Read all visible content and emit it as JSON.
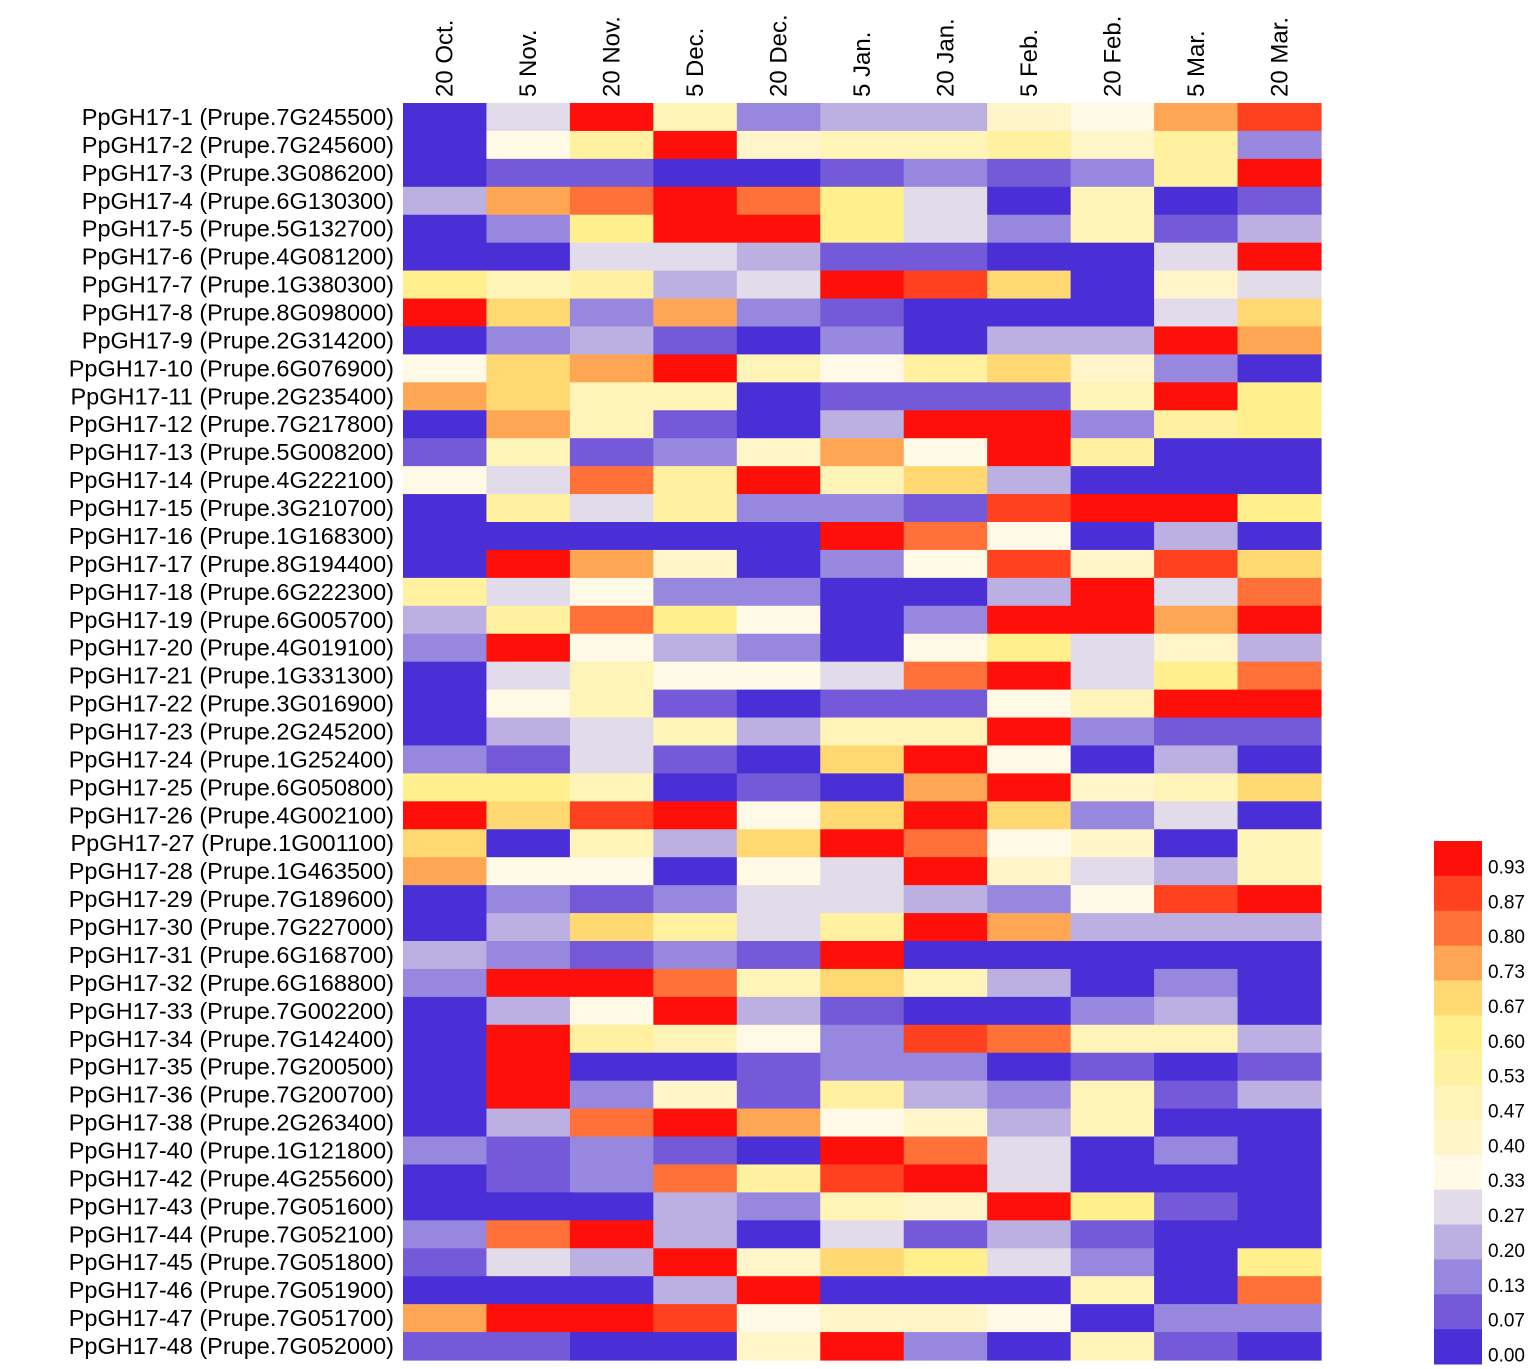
{
  "chart_data": {
    "type": "heatmap",
    "title": "",
    "columns": [
      "20 Oct.",
      "5 Nov.",
      "20 Nov.",
      "5 Dec.",
      "20 Dec.",
      "5 Jan.",
      "20 Jan.",
      "5 Feb.",
      "20 Feb.",
      "5 Mar.",
      "20 Mar."
    ],
    "rows": [
      "PpGH17-1 (Prupe.7G245500)",
      "PpGH17-2 (Prupe.7G245600)",
      "PpGH17-3 (Prupe.3G086200)",
      "PpGH17-4 (Prupe.6G130300)",
      "PpGH17-5 (Prupe.5G132700)",
      "PpGH17-6 (Prupe.4G081200)",
      "PpGH17-7 (Prupe.1G380300)",
      "PpGH17-8 (Prupe.8G098000)",
      "PpGH17-9 (Prupe.2G314200)",
      "PpGH17-10 (Prupe.6G076900)",
      "PpGH17-11 (Prupe.2G235400)",
      "PpGH17-12 (Prupe.7G217800)",
      "PpGH17-13 (Prupe.5G008200)",
      "PpGH17-14 (Prupe.4G222100)",
      "PpGH17-15 (Prupe.3G210700)",
      "PpGH17-16 (Prupe.1G168300)",
      "PpGH17-17 (Prupe.8G194400)",
      "PpGH17-18 (Prupe.6G222300)",
      "PpGH17-19 (Prupe.6G005700)",
      "PpGH17-20 (Prupe.4G019100)",
      "PpGH17-21 (Prupe.1G331300)",
      "PpGH17-22 (Prupe.3G016900)",
      "PpGH17-23 (Prupe.2G245200)",
      "PpGH17-24 (Prupe.1G252400)",
      "PpGH17-25 (Prupe.6G050800)",
      "PpGH17-26 (Prupe.4G002100)",
      "PpGH17-27 (Prupe.1G001100)",
      "PpGH17-28 (Prupe.1G463500)",
      "PpGH17-29 (Prupe.7G189600)",
      "PpGH17-30 (Prupe.7G227000)",
      "PpGH17-31 (Prupe.6G168700)",
      "PpGH17-32 (Prupe.6G168800)",
      "PpGH17-33 (Prupe.7G002200)",
      "PpGH17-34 (Prupe.7G142400)",
      "PpGH17-35 (Prupe.7G200500)",
      "PpGH17-36 (Prupe.7G200700)",
      "PpGH17-38 (Prupe.2G263400)",
      "PpGH17-40 (Prupe.1G121800)",
      "PpGH17-42 (Prupe.4G255600)",
      "PpGH17-43 (Prupe.7G051600)",
      "PpGH17-44 (Prupe.7G052100)",
      "PpGH17-45 (Prupe.7G051800)",
      "PpGH17-46 (Prupe.7G051900)",
      "PpGH17-47 (Prupe.7G051700)",
      "PpGH17-48 (Prupe.7G052000)"
    ],
    "values": [
      [
        0,
        0.27,
        0.93,
        0.47,
        0.13,
        0.2,
        0.2,
        0.4,
        0.33,
        0.73,
        0.87
      ],
      [
        0,
        0.33,
        0.53,
        0.93,
        0.4,
        0.47,
        0.47,
        0.53,
        0.4,
        0.53,
        0.13
      ],
      [
        0,
        0.07,
        0.07,
        0,
        0,
        0.07,
        0.13,
        0.07,
        0.13,
        0.53,
        0.93
      ],
      [
        0.2,
        0.73,
        0.8,
        0.93,
        0.8,
        0.6,
        0.27,
        0,
        0.47,
        0,
        0.07
      ],
      [
        0,
        0.13,
        0.6,
        0.93,
        0.93,
        0.6,
        0.27,
        0.13,
        0.47,
        0.07,
        0.2
      ],
      [
        0,
        0,
        0.27,
        0.27,
        0.2,
        0.07,
        0.07,
        0,
        0,
        0.27,
        0.93
      ],
      [
        0.6,
        0.47,
        0.53,
        0.2,
        0.27,
        0.93,
        0.87,
        0.67,
        0,
        0.4,
        0.27
      ],
      [
        0.93,
        0.67,
        0.13,
        0.73,
        0.13,
        0.07,
        0,
        0,
        0,
        0.27,
        0.67
      ],
      [
        0,
        0.13,
        0.2,
        0.07,
        0,
        0.13,
        0,
        0.2,
        0.2,
        0.93,
        0.73
      ],
      [
        0.33,
        0.67,
        0.73,
        0.93,
        0.47,
        0.33,
        0.53,
        0.67,
        0.4,
        0.13,
        0
      ],
      [
        0.73,
        0.67,
        0.47,
        0.47,
        0,
        0.07,
        0.07,
        0.07,
        0.47,
        0.93,
        0.6
      ],
      [
        0,
        0.73,
        0.47,
        0.07,
        0,
        0.2,
        0.93,
        0.93,
        0.13,
        0.53,
        0.6
      ],
      [
        0.07,
        0.47,
        0.07,
        0.13,
        0.4,
        0.73,
        0.33,
        0.93,
        0.53,
        0,
        0
      ],
      [
        0.33,
        0.27,
        0.8,
        0.53,
        0.93,
        0.47,
        0.67,
        0.2,
        0,
        0,
        0
      ],
      [
        0,
        0.53,
        0.27,
        0.53,
        0.13,
        0.13,
        0.07,
        0.87,
        0.93,
        0.93,
        0.6
      ],
      [
        0,
        0,
        0,
        0,
        0,
        0.93,
        0.8,
        0.33,
        0,
        0.2,
        0
      ],
      [
        0,
        0.93,
        0.73,
        0.4,
        0,
        0.13,
        0.33,
        0.87,
        0.4,
        0.87,
        0.67
      ],
      [
        0.53,
        0.27,
        0.33,
        0.13,
        0.13,
        0,
        0,
        0.2,
        0.93,
        0.27,
        0.8
      ],
      [
        0.2,
        0.53,
        0.8,
        0.6,
        0.33,
        0,
        0.13,
        0.93,
        0.93,
        0.73,
        0.93
      ],
      [
        0.13,
        0.93,
        0.33,
        0.2,
        0.13,
        0,
        0.33,
        0.6,
        0.27,
        0.4,
        0.2
      ],
      [
        0,
        0.27,
        0.47,
        0.33,
        0.33,
        0.27,
        0.8,
        0.93,
        0.27,
        0.6,
        0.8
      ],
      [
        0,
        0.33,
        0.47,
        0.07,
        0,
        0.07,
        0.07,
        0.33,
        0.47,
        0.93,
        0.93
      ],
      [
        0,
        0.2,
        0.27,
        0.47,
        0.2,
        0.47,
        0.47,
        0.93,
        0.13,
        0.07,
        0.07
      ],
      [
        0.13,
        0.07,
        0.27,
        0.07,
        0,
        0.67,
        0.93,
        0.33,
        0,
        0.2,
        0
      ],
      [
        0.6,
        0.6,
        0.47,
        0,
        0.07,
        0,
        0.73,
        0.93,
        0.4,
        0.47,
        0.67
      ],
      [
        0.93,
        0.67,
        0.87,
        0.93,
        0.33,
        0.67,
        0.93,
        0.67,
        0.13,
        0.27,
        0
      ],
      [
        0.67,
        0,
        0.47,
        0.2,
        0.67,
        0.93,
        0.8,
        0.33,
        0.4,
        0,
        0.47
      ],
      [
        0.73,
        0.33,
        0.33,
        0,
        0.33,
        0.27,
        0.93,
        0.4,
        0.27,
        0.2,
        0.47
      ],
      [
        0,
        0.13,
        0.07,
        0.13,
        0.27,
        0.27,
        0.2,
        0.13,
        0.33,
        0.87,
        0.93
      ],
      [
        0,
        0.2,
        0.67,
        0.53,
        0.27,
        0.53,
        0.93,
        0.73,
        0.2,
        0.2,
        0.2
      ],
      [
        0.2,
        0.13,
        0.07,
        0.13,
        0.07,
        0.93,
        0,
        0,
        0,
        0,
        0
      ],
      [
        0.13,
        0.93,
        0.93,
        0.8,
        0.47,
        0.67,
        0.47,
        0.2,
        0,
        0.13,
        0
      ],
      [
        0,
        0.2,
        0.33,
        0.93,
        0.2,
        0.07,
        0,
        0,
        0.13,
        0.2,
        0
      ],
      [
        0,
        0.93,
        0.53,
        0.47,
        0.33,
        0.13,
        0.87,
        0.8,
        0.47,
        0.47,
        0.2
      ],
      [
        0,
        0.93,
        0,
        0,
        0.07,
        0.13,
        0.13,
        0,
        0.07,
        0,
        0.07
      ],
      [
        0,
        0.93,
        0.13,
        0.4,
        0.07,
        0.53,
        0.2,
        0.13,
        0.47,
        0.07,
        0.2
      ],
      [
        0,
        0.2,
        0.8,
        0.93,
        0.73,
        0.33,
        0.4,
        0.2,
        0.47,
        0,
        0
      ],
      [
        0.13,
        0.07,
        0.13,
        0.07,
        0,
        0.93,
        0.8,
        0.27,
        0,
        0.13,
        0
      ],
      [
        0,
        0.07,
        0.13,
        0.8,
        0.53,
        0.87,
        0.93,
        0.27,
        0,
        0,
        0
      ],
      [
        0,
        0,
        0,
        0.2,
        0.13,
        0.47,
        0.4,
        0.93,
        0.6,
        0.07,
        0
      ],
      [
        0.13,
        0.8,
        0.93,
        0.2,
        0,
        0.27,
        0.07,
        0.2,
        0.07,
        0,
        0
      ],
      [
        0.07,
        0.27,
        0.2,
        0.93,
        0.4,
        0.67,
        0.6,
        0.27,
        0.13,
        0,
        0.6
      ],
      [
        0,
        0,
        0,
        0.2,
        0.93,
        0,
        0,
        0,
        0.47,
        0,
        0.8
      ],
      [
        0.73,
        0.93,
        0.93,
        0.87,
        0.33,
        0.4,
        0.4,
        0.33,
        0,
        0.13,
        0.13
      ],
      [
        0.07,
        0.07,
        0,
        0,
        0.4,
        0.93,
        0.13,
        0,
        0.47,
        0.07,
        0
      ]
    ],
    "colorscale": {
      "ticks": [
        "0.93",
        "0.87",
        "0.80",
        "0.73",
        "0.67",
        "0.60",
        "0.53",
        "0.47",
        "0.40",
        "0.33",
        "0.27",
        "0.20",
        "0.13",
        "0.07",
        "0.00"
      ],
      "levels": [
        0.93,
        0.87,
        0.8,
        0.73,
        0.67,
        0.6,
        0.53,
        0.47,
        0.4,
        0.33,
        0.27,
        0.2,
        0.13,
        0.07,
        0
      ],
      "colors": [
        "#ff0f0a",
        "#ff4120",
        "#ff7139",
        "#ffa655",
        "#ffd872",
        "#ffef8d",
        "#fff19f",
        "#fff4b8",
        "#fff5c9",
        "#fff9e6",
        "#e2dcea",
        "#bcb0e3",
        "#9887df",
        "#7459d9",
        "#4a2ed6"
      ],
      "placement": "bottom-right"
    }
  }
}
